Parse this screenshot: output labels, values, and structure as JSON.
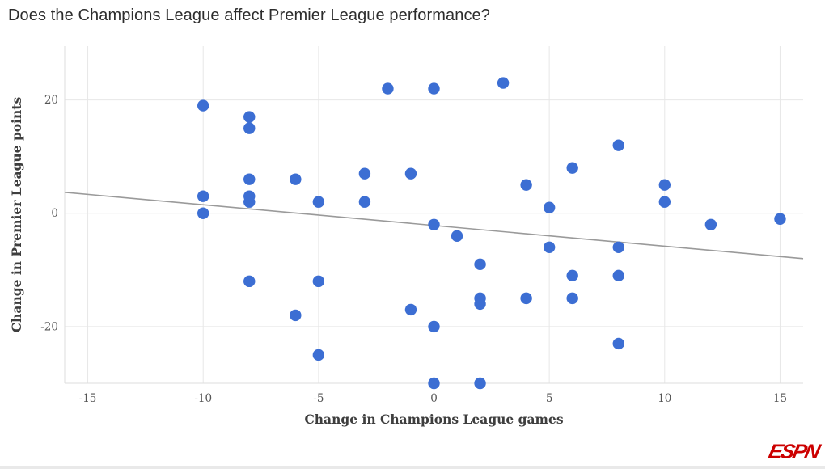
{
  "page": {
    "title": "Does the Champions League affect Premier League performance?",
    "brand": "ESPN"
  },
  "colors": {
    "background": "#ffffff",
    "dot": "#3c6ed3",
    "trend_line": "#9a9a9a",
    "grid": "#e7e7e7",
    "axis_border": "#dedede",
    "title_text": "#2d2d2d",
    "axis_title_text": "#3e3e3e",
    "tick_text": "#555555",
    "brand_red": "#cc0000"
  },
  "chart_data": {
    "type": "scatter",
    "title": "Does the Champions League affect Premier League performance?",
    "xlabel": "Change in Champions League games",
    "ylabel": "Change in Premier League points",
    "xlim": [
      -16,
      16
    ],
    "ylim": [
      -30,
      29.5
    ],
    "x_ticks": [
      -15,
      -10,
      -5,
      0,
      5,
      10,
      15
    ],
    "y_ticks": [
      -20,
      0,
      20
    ],
    "grid": true,
    "legend": "none",
    "point_radius": 7.2,
    "points": [
      [
        -10,
        19
      ],
      [
        -10,
        3
      ],
      [
        -10,
        0
      ],
      [
        -8,
        17
      ],
      [
        -8,
        15
      ],
      [
        -8,
        6
      ],
      [
        -8,
        3
      ],
      [
        -8,
        2
      ],
      [
        -8,
        -12
      ],
      [
        -6,
        6
      ],
      [
        -6,
        -18
      ],
      [
        -5,
        2
      ],
      [
        -5,
        -12
      ],
      [
        -5,
        -25
      ],
      [
        -3,
        7
      ],
      [
        -3,
        2
      ],
      [
        -2,
        22
      ],
      [
        -1,
        7
      ],
      [
        -1,
        -17
      ],
      [
        0,
        22
      ],
      [
        0,
        -2
      ],
      [
        0,
        -20
      ],
      [
        0,
        -30
      ],
      [
        1,
        -4
      ],
      [
        2,
        -9
      ],
      [
        2,
        -15
      ],
      [
        2,
        -16
      ],
      [
        2,
        -30
      ],
      [
        3,
        23
      ],
      [
        4,
        5
      ],
      [
        4,
        -15
      ],
      [
        5,
        1
      ],
      [
        5,
        -6
      ],
      [
        6,
        8
      ],
      [
        6,
        -11
      ],
      [
        6,
        -15
      ],
      [
        8,
        12
      ],
      [
        8,
        -6
      ],
      [
        8,
        -11
      ],
      [
        8,
        -23
      ],
      [
        10,
        5
      ],
      [
        10,
        2
      ],
      [
        12,
        -2
      ],
      [
        15,
        -1
      ]
    ],
    "trend_line": {
      "x1": -16,
      "y1": 3.7,
      "x2": 16,
      "y2": -8.0
    }
  }
}
